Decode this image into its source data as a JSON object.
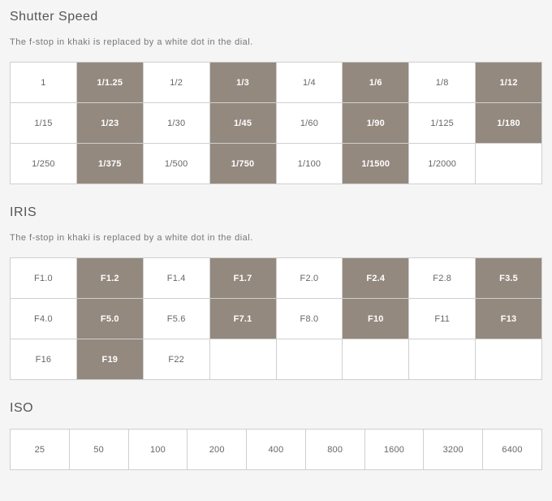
{
  "page_bg": "#f5f5f5",
  "cell_bg": "#ffffff",
  "highlight_bg": "#94897f",
  "highlight_text": "#ffffff",
  "border_color": "#cfcfcf",
  "text_color": "#555555",
  "sections": [
    {
      "key": "shutter",
      "title": "Shutter Speed",
      "subtitle": "The f-stop in khaki is replaced by a white dot in the dial.",
      "cols": 8,
      "rows": [
        [
          {
            "v": "1",
            "hl": false
          },
          {
            "v": "1/1.25",
            "hl": true
          },
          {
            "v": "1/2",
            "hl": false
          },
          {
            "v": "1/3",
            "hl": true
          },
          {
            "v": "1/4",
            "hl": false
          },
          {
            "v": "1/6",
            "hl": true
          },
          {
            "v": "1/8",
            "hl": false
          },
          {
            "v": "1/12",
            "hl": true
          }
        ],
        [
          {
            "v": "1/15",
            "hl": false
          },
          {
            "v": "1/23",
            "hl": true
          },
          {
            "v": "1/30",
            "hl": false
          },
          {
            "v": "1/45",
            "hl": true
          },
          {
            "v": "1/60",
            "hl": false
          },
          {
            "v": "1/90",
            "hl": true
          },
          {
            "v": "1/125",
            "hl": false
          },
          {
            "v": "1/180",
            "hl": true
          }
        ],
        [
          {
            "v": "1/250",
            "hl": false
          },
          {
            "v": "1/375",
            "hl": true
          },
          {
            "v": "1/500",
            "hl": false
          },
          {
            "v": "1/750",
            "hl": true
          },
          {
            "v": "1/100",
            "hl": false
          },
          {
            "v": "1/1500",
            "hl": true
          },
          {
            "v": "1/2000",
            "hl": false
          },
          {
            "v": "",
            "hl": false
          }
        ]
      ]
    },
    {
      "key": "iris",
      "title": "IRIS",
      "subtitle": "The f-stop in khaki is replaced by a white dot in the dial.",
      "cols": 8,
      "rows": [
        [
          {
            "v": "F1.0",
            "hl": false
          },
          {
            "v": "F1.2",
            "hl": true
          },
          {
            "v": "F1.4",
            "hl": false
          },
          {
            "v": "F1.7",
            "hl": true
          },
          {
            "v": "F2.0",
            "hl": false
          },
          {
            "v": "F2.4",
            "hl": true
          },
          {
            "v": "F2.8",
            "hl": false
          },
          {
            "v": "F3.5",
            "hl": true
          }
        ],
        [
          {
            "v": "F4.0",
            "hl": false
          },
          {
            "v": "F5.0",
            "hl": true
          },
          {
            "v": "F5.6",
            "hl": false
          },
          {
            "v": "F7.1",
            "hl": true
          },
          {
            "v": "F8.0",
            "hl": false
          },
          {
            "v": "F10",
            "hl": true
          },
          {
            "v": "F11",
            "hl": false
          },
          {
            "v": "F13",
            "hl": true
          }
        ],
        [
          {
            "v": "F16",
            "hl": false
          },
          {
            "v": "F19",
            "hl": true
          },
          {
            "v": "F22",
            "hl": false
          },
          {
            "v": "",
            "hl": false
          },
          {
            "v": "",
            "hl": false
          },
          {
            "v": "",
            "hl": false
          },
          {
            "v": "",
            "hl": false
          },
          {
            "v": "",
            "hl": false
          }
        ]
      ]
    },
    {
      "key": "iso",
      "title": "ISO",
      "subtitle": "",
      "cols": 9,
      "rows": [
        [
          {
            "v": "25",
            "hl": false
          },
          {
            "v": "50",
            "hl": false
          },
          {
            "v": "100",
            "hl": false
          },
          {
            "v": "200",
            "hl": false
          },
          {
            "v": "400",
            "hl": false
          },
          {
            "v": "800",
            "hl": false
          },
          {
            "v": "1600",
            "hl": false
          },
          {
            "v": "3200",
            "hl": false
          },
          {
            "v": "6400",
            "hl": false
          }
        ]
      ]
    }
  ]
}
